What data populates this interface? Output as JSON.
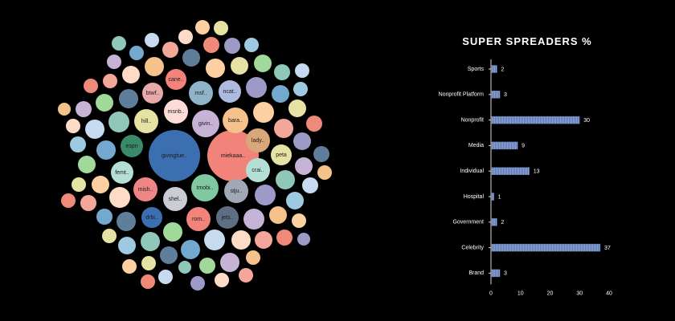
{
  "bubble_chart": {
    "labels": [
      "givingtue..",
      "miekaaa..",
      "cane..",
      "btwf..",
      "msf..",
      "ncat..",
      "msnb..",
      "hill..",
      "givin..",
      "bara..",
      "lady..",
      "peta",
      "espn",
      "femt..",
      "crai..",
      "mish..",
      "shel..",
      "tmobi..",
      "stju..",
      "drbi..",
      "rom..",
      "jets.."
    ],
    "palette": [
      "#f4a69a",
      "#9ecae1",
      "#a1d99b",
      "#fdd0a2",
      "#c6dbef",
      "#ef8a7a",
      "#74a9cf",
      "#c7b3d6",
      "#e6e2a3",
      "#fddbc7",
      "#9e9ac8",
      "#5e7e9a",
      "#f4c28a",
      "#8fc7b8"
    ]
  },
  "chart_data": {
    "type": "bar",
    "orientation": "horizontal",
    "title": "SUPER SPREADERS %",
    "categories": [
      "Sports",
      "Nonprofit Platform",
      "Nonprofit",
      "Media",
      "Individual",
      "Hospital",
      "Government",
      "Celebrity",
      "Brand"
    ],
    "values": [
      2,
      3,
      30,
      9,
      13,
      1,
      2,
      37,
      3
    ],
    "xlim": [
      0,
      40
    ],
    "xticks": [
      "0",
      "10",
      "20",
      "30",
      "40"
    ],
    "bar_color": "#8fa8dc",
    "value_labels": [
      "2",
      "3",
      "30",
      "9",
      "13",
      "1",
      "2",
      "37",
      "3"
    ]
  }
}
